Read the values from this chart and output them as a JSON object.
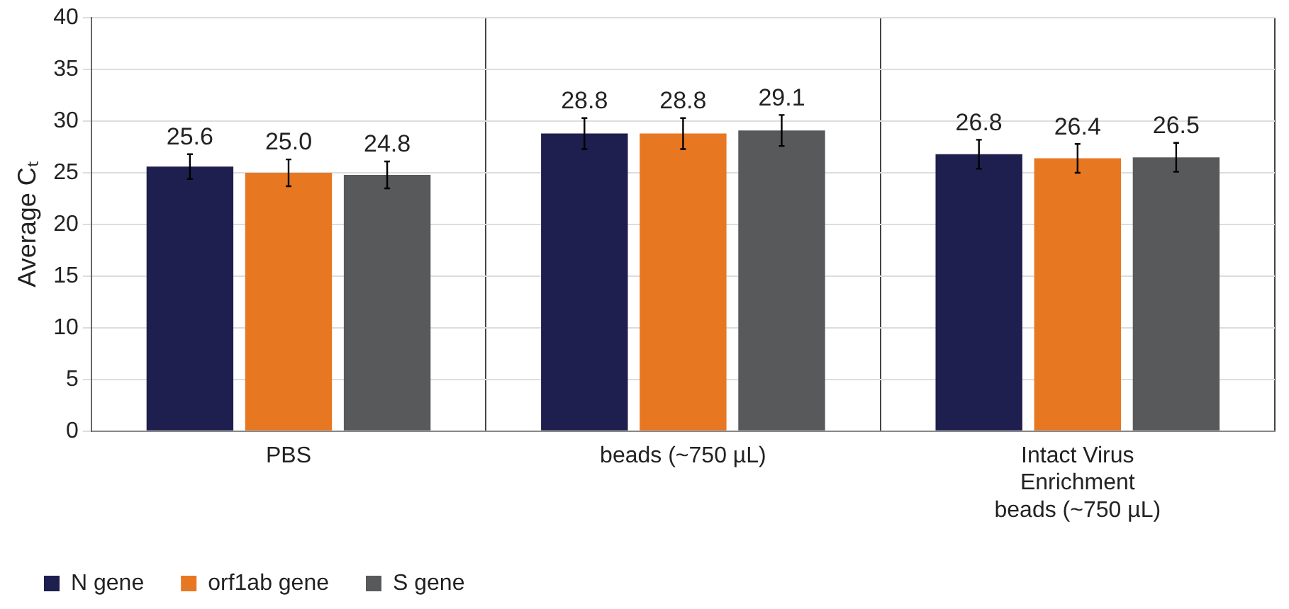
{
  "chart_data": {
    "type": "bar",
    "ylabel": "Average Cₜ",
    "categories": [
      "PBS",
      "beads (~750 µL)",
      "Intact Virus Enrichment beads (~750 µL)"
    ],
    "series": [
      {
        "name": "N gene",
        "color": "#1e1f4f",
        "values": [
          25.6,
          28.8,
          26.8
        ],
        "value_labels": [
          "25.6",
          "28.8",
          "26.8"
        ],
        "errors": [
          1.2,
          1.5,
          1.4
        ]
      },
      {
        "name": "orf1ab gene",
        "color": "#e87722",
        "values": [
          25.0,
          28.8,
          26.4
        ],
        "value_labels": [
          "25.0",
          "28.8",
          "26.4"
        ],
        "errors": [
          1.3,
          1.5,
          1.4
        ]
      },
      {
        "name": "S gene",
        "color": "#58595b",
        "values": [
          24.8,
          29.1,
          26.5
        ],
        "value_labels": [
          "24.8",
          "29.1",
          "26.5"
        ],
        "errors": [
          1.3,
          1.5,
          1.4
        ]
      }
    ],
    "ylim": [
      0,
      40
    ],
    "yticks": [
      0,
      5,
      10,
      15,
      20,
      25,
      30,
      35,
      40
    ],
    "grid": true,
    "legend": "bottom left"
  }
}
